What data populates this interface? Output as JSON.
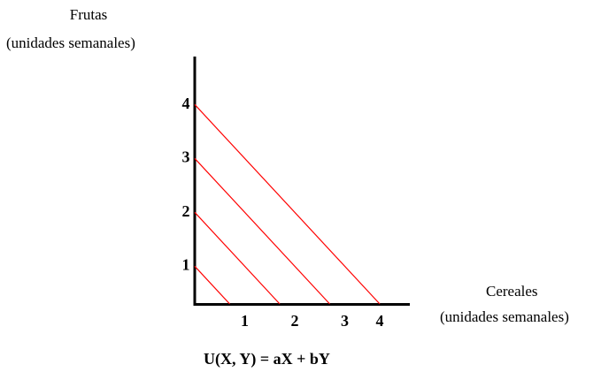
{
  "chart_data": {
    "type": "line",
    "ylabel": [
      "Frutas",
      "(unidades semanales)"
    ],
    "xlabel": [
      "Cereales",
      "(unidades semanales)"
    ],
    "formula": "U(X, Y) = aX + bY",
    "x_ticks": [
      "1",
      "2",
      "3",
      "4"
    ],
    "y_ticks": [
      "1",
      "2",
      "3",
      "4"
    ],
    "xlim": [
      0,
      4.4
    ],
    "ylim": [
      0,
      4.4
    ],
    "line_color": "#ff0000",
    "axis_color": "#000000",
    "grid": false,
    "series": [
      {
        "x": [
          0,
          0.7
        ],
        "y": [
          0.7,
          0
        ]
      },
      {
        "x": [
          0,
          1.7
        ],
        "y": [
          1.7,
          0
        ]
      },
      {
        "x": [
          0,
          2.7
        ],
        "y": [
          2.7,
          0
        ]
      },
      {
        "x": [
          0,
          3.7
        ],
        "y": [
          3.7,
          0
        ]
      }
    ]
  }
}
